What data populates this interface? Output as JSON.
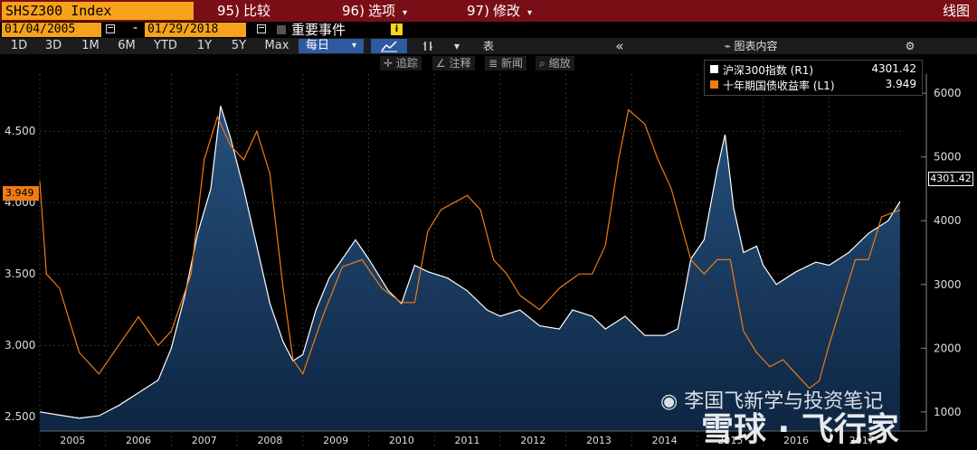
{
  "topbar": {
    "ticker": "SHSZ300 Index",
    "buttons": [
      {
        "num": "95)",
        "label": "比较",
        "arrow": ""
      },
      {
        "num": "96)",
        "label": "选项",
        "arrow": "▾"
      },
      {
        "num": "97)",
        "label": "修改",
        "arrow": "▾"
      }
    ],
    "chart_type_label": "线图"
  },
  "daterow": {
    "start_date": "01/04/2005",
    "separator": "-",
    "end_date": "01/29/2018",
    "events_label": "重要事件",
    "info": "i"
  },
  "toolbar": {
    "ranges": [
      "1D",
      "3D",
      "1M",
      "6M",
      "YTD",
      "1Y",
      "5Y",
      "Max"
    ],
    "frequency": "每日",
    "frequency_arrow": "▾",
    "table_label": "表",
    "collapse": "«",
    "chart_content_label": "图表内容",
    "settings": "⚙"
  },
  "subtools": [
    {
      "icon": "✛",
      "label": "追踪"
    },
    {
      "icon": "∠",
      "label": "注释"
    },
    {
      "icon": "≣",
      "label": "新闻"
    },
    {
      "icon": "⌕",
      "label": "缩放"
    }
  ],
  "legend": [
    {
      "name": "沪深300指数 (R1)",
      "value": "4301.42",
      "color": "#ffffff"
    },
    {
      "name": "十年期国债收益率 (L1)",
      "value": "3.949",
      "color": "#f07a14"
    }
  ],
  "chart_data": {
    "type": "line",
    "x_labels": [
      "2005",
      "2006",
      "2007",
      "2008",
      "2009",
      "2010",
      "2011",
      "2012",
      "2013",
      "2014",
      "2015",
      "2016",
      "2017"
    ],
    "left_axis": {
      "ticks": [
        "4.500",
        "4.000",
        "3.500",
        "3.000",
        "2.500"
      ],
      "range": [
        2.4,
        4.9
      ]
    },
    "right_axis": {
      "ticks": [
        "6000",
        "5000",
        "4000",
        "3000",
        "2000",
        "1000"
      ],
      "range": [
        700,
        6300
      ]
    },
    "last_left": "3.949",
    "last_right": "4301.42",
    "series": [
      {
        "name": "沪深300指数 (R1)",
        "axis": "right",
        "color": "#ffffff",
        "x": [
          2005.0,
          2005.3,
          2005.6,
          2005.9,
          2006.2,
          2006.5,
          2006.8,
          2007.0,
          2007.2,
          2007.4,
          2007.6,
          2007.75,
          2007.9,
          2008.1,
          2008.3,
          2008.5,
          2008.7,
          2008.85,
          2009.0,
          2009.2,
          2009.4,
          2009.6,
          2009.8,
          2010.0,
          2010.3,
          2010.5,
          2010.7,
          2010.9,
          2011.2,
          2011.5,
          2011.8,
          2012.0,
          2012.3,
          2012.6,
          2012.9,
          2013.1,
          2013.4,
          2013.6,
          2013.9,
          2014.2,
          2014.5,
          2014.7,
          2014.9,
          2015.1,
          2015.3,
          2015.42,
          2015.55,
          2015.7,
          2015.9,
          2016.0,
          2016.2,
          2016.5,
          2016.8,
          2017.0,
          2017.3,
          2017.6,
          2017.9,
          2018.08
        ],
        "y": [
          1000,
          950,
          900,
          940,
          1100,
          1300,
          1500,
          2000,
          2800,
          3800,
          4500,
          5800,
          5300,
          4500,
          3600,
          2700,
          2100,
          1800,
          1900,
          2600,
          3100,
          3400,
          3700,
          3400,
          2900,
          2700,
          3300,
          3200,
          3100,
          2900,
          2600,
          2500,
          2600,
          2350,
          2300,
          2600,
          2500,
          2300,
          2500,
          2200,
          2200,
          2300,
          3400,
          3700,
          4800,
          5350,
          4200,
          3500,
          3600,
          3300,
          3000,
          3200,
          3350,
          3300,
          3500,
          3800,
          4000,
          4301
        ]
      },
      {
        "name": "十年期国债收益率 (L1)",
        "axis": "left",
        "color": "#f07a14",
        "x": [
          2005.0,
          2005.1,
          2005.3,
          2005.6,
          2005.9,
          2006.2,
          2006.5,
          2006.8,
          2007.0,
          2007.3,
          2007.5,
          2007.7,
          2007.9,
          2008.1,
          2008.3,
          2008.5,
          2008.7,
          2008.85,
          2009.0,
          2009.3,
          2009.6,
          2009.9,
          2010.2,
          2010.5,
          2010.7,
          2010.9,
          2011.1,
          2011.3,
          2011.5,
          2011.7,
          2011.9,
          2012.1,
          2012.3,
          2012.6,
          2012.9,
          2013.2,
          2013.4,
          2013.6,
          2013.8,
          2013.95,
          2014.2,
          2014.4,
          2014.6,
          2014.9,
          2015.1,
          2015.3,
          2015.5,
          2015.7,
          2015.9,
          2016.1,
          2016.3,
          2016.5,
          2016.7,
          2016.85,
          2017.0,
          2017.2,
          2017.4,
          2017.6,
          2017.8,
          2018.08
        ],
        "y": [
          4.15,
          3.5,
          3.4,
          2.95,
          2.8,
          3.0,
          3.2,
          3.0,
          3.1,
          3.5,
          4.3,
          4.6,
          4.4,
          4.3,
          4.5,
          4.2,
          3.4,
          2.9,
          2.8,
          3.2,
          3.55,
          3.6,
          3.4,
          3.3,
          3.3,
          3.8,
          3.95,
          4.0,
          4.05,
          3.95,
          3.6,
          3.5,
          3.35,
          3.25,
          3.4,
          3.5,
          3.5,
          3.7,
          4.3,
          4.65,
          4.55,
          4.3,
          4.1,
          3.6,
          3.5,
          3.6,
          3.6,
          3.1,
          2.95,
          2.85,
          2.9,
          2.8,
          2.7,
          2.75,
          3.0,
          3.3,
          3.6,
          3.6,
          3.9,
          3.949
        ]
      }
    ]
  },
  "watermark": {
    "line1": "李国飞新学与投资笔记",
    "line2": "雪球 · 飞行家"
  }
}
